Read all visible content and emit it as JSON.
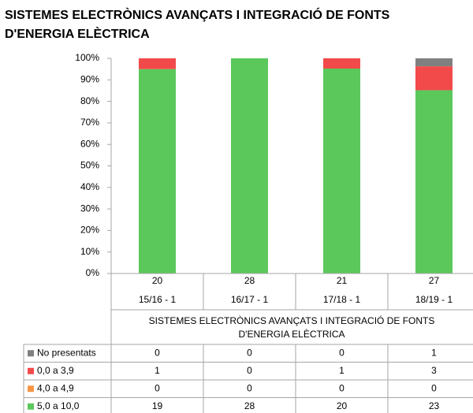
{
  "chart_data": {
    "type": "bar",
    "stacking": "percent",
    "title": [
      "SISTEMES ELECTRÒNICS AVANÇATS I INTEGRACIÓ DE FONTS",
      "D'ENERGIA ELÈCTRICA"
    ],
    "xlabel": [
      "SISTEMES ELECTRÒNICS AVANÇATS I INTEGRACIÓ DE FONTS",
      "D'ENERGIA ELÈCTRICA"
    ],
    "categories": [
      "15/16  - 1",
      "16/17  - 1",
      "17/18  - 1",
      "18/19  - 1"
    ],
    "totals": [
      20,
      28,
      21,
      27
    ],
    "series": [
      {
        "name": "No presentats",
        "color": "#808080",
        "values": [
          0,
          0,
          0,
          1
        ]
      },
      {
        "name": "0,0 a 3,9",
        "color": "#f24a4a",
        "values": [
          1,
          0,
          1,
          3
        ]
      },
      {
        "name": "4,0 a 4,9",
        "color": "#f79646",
        "values": [
          0,
          0,
          0,
          0
        ]
      },
      {
        "name": "5,0 a 10,0",
        "color": "#5bc85b",
        "values": [
          19,
          28,
          20,
          23
        ]
      }
    ],
    "ylim": [
      0,
      100
    ],
    "yticks": [
      {
        "value": 0,
        "label": "0%"
      },
      {
        "value": 10,
        "label": "10%"
      },
      {
        "value": 20,
        "label": "20%"
      },
      {
        "value": 30,
        "label": "30%"
      },
      {
        "value": 40,
        "label": "40%"
      },
      {
        "value": 50,
        "label": "50%"
      },
      {
        "value": 60,
        "label": "60%"
      },
      {
        "value": 70,
        "label": "70%"
      },
      {
        "value": 80,
        "label": "80%"
      },
      {
        "value": 90,
        "label": "90%"
      },
      {
        "value": 100,
        "label": "100%"
      }
    ]
  }
}
